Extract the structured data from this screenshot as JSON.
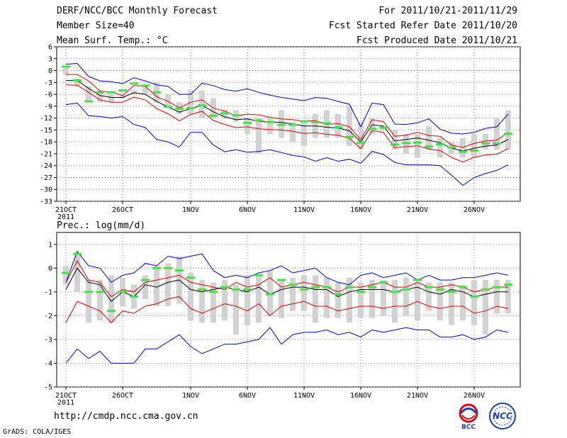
{
  "header": {
    "left_lines": [
      "DERF/NCC/BCC Monthly Forecast",
      "Member Size=40",
      "Mean Surf. Temp.: °C"
    ],
    "right_lines": [
      "For 2011/10/21-2011/11/29",
      "Fcst Started Refer Date 2011/10/20",
      "Fcst Produced Date 2011/10/21"
    ]
  },
  "footer": {
    "url": "http://cmdp.ncc.cma.gov.cn",
    "grads": "GrADS: COLA/IGES",
    "logo_bcc": "BCC",
    "logo_ncc": "NCC"
  },
  "colors": {
    "envelope": "#0000cc",
    "spread": "#dd0000",
    "mean": "#000000",
    "bar": "#d2d2d2",
    "obs": "#44e244",
    "grid": "#777777"
  },
  "chart_data": [
    {
      "type": "line",
      "title": "Mean Surf. Temp.: °C",
      "days": 40,
      "x_tick_labels": [
        {
          "day": 0,
          "label": "21OCT",
          "sub": "2011"
        },
        {
          "day": 5,
          "label": "26OCT"
        },
        {
          "day": 11,
          "label": "1NOV"
        },
        {
          "day": 16,
          "label": "6NOV"
        },
        {
          "day": 21,
          "label": "11NOV"
        },
        {
          "day": 26,
          "label": "16NOV"
        },
        {
          "day": 31,
          "label": "21NOV"
        },
        {
          "day": 36,
          "label": "26NOV"
        }
      ],
      "ylim": [
        -33,
        6
      ],
      "yticks": [
        6,
        3,
        0,
        -3,
        -6,
        -9,
        -12,
        -15,
        -18,
        -21,
        -24,
        -27,
        -30,
        -33
      ],
      "series": [
        {
          "name": "max",
          "values": [
            1.6,
            1.8,
            -1.5,
            -2.6,
            -2.8,
            -3.3,
            -1.8,
            -2.6,
            -3.6,
            -4,
            -6,
            -6,
            -3.2,
            -3.8,
            -4.8,
            -5.2,
            -4.6,
            -5.5,
            -6.2,
            -6.8,
            -7.2,
            -7.6,
            -6.8,
            -7,
            -7.8,
            -8.5,
            -14.2,
            -8.2,
            -8.6,
            -13.5,
            -13.6,
            -13.2,
            -12.2,
            -14.8,
            -15.8,
            -16,
            -15.6,
            -14.6,
            -14.2,
            -11
          ]
        },
        {
          "name": "upper",
          "values": [
            -1,
            -1,
            -2.6,
            -5.2,
            -5.4,
            -6.3,
            -3.8,
            -4,
            -6.6,
            -7.8,
            -9.4,
            -8,
            -7.4,
            -9.5,
            -10.2,
            -11.5,
            -11,
            -11.2,
            -11.8,
            -12.2,
            -12.4,
            -12.8,
            -12.6,
            -13.6,
            -13.4,
            -14.2,
            -17.4,
            -12.4,
            -12.9,
            -16.6,
            -16.3,
            -15.6,
            -16.4,
            -16.6,
            -18.8,
            -19.4,
            -18.4,
            -17.8,
            -17.6,
            -15.6
          ]
        },
        {
          "name": "mean",
          "values": [
            -2.5,
            -2.5,
            -4.5,
            -6.3,
            -6.8,
            -6.8,
            -5.6,
            -6,
            -7.8,
            -9.2,
            -10.5,
            -9.6,
            -8.8,
            -10.4,
            -11.7,
            -12.4,
            -12.2,
            -12.8,
            -13,
            -13.1,
            -13.5,
            -14,
            -14,
            -14.3,
            -14.5,
            -15.2,
            -18,
            -13.7,
            -14,
            -17.8,
            -17.4,
            -17,
            -17.6,
            -18.2,
            -19.6,
            -20.3,
            -19.6,
            -19.1,
            -18.8,
            -17.4
          ]
        },
        {
          "name": "lower",
          "values": [
            -3.6,
            -3.7,
            -5.5,
            -7.4,
            -8,
            -8,
            -6.7,
            -7.4,
            -9.6,
            -10.9,
            -12.7,
            -11.1,
            -10.3,
            -12.6,
            -13.6,
            -14.4,
            -14.2,
            -14.7,
            -14.9,
            -15,
            -15.3,
            -15.9,
            -15.7,
            -16.1,
            -16.3,
            -17.1,
            -19.7,
            -15.2,
            -15.6,
            -19.5,
            -19.2,
            -19,
            -19.8,
            -20.2,
            -21.9,
            -23.1,
            -21.9,
            -21.3,
            -21.1,
            -19.7
          ]
        },
        {
          "name": "min",
          "values": [
            -8.6,
            -8.2,
            -11.4,
            -11.6,
            -12,
            -11.6,
            -13.6,
            -14.4,
            -17.4,
            -18,
            -19.3,
            -15.6,
            -15.6,
            -18.8,
            -20.5,
            -20,
            -20.6,
            -20.4,
            -20,
            -20.7,
            -21.4,
            -21.8,
            -22.9,
            -22,
            -22.9,
            -22.4,
            -23.4,
            -20.4,
            -21.2,
            -23.2,
            -23.8,
            -23.8,
            -23.8,
            -24,
            -26.4,
            -29,
            -27,
            -26,
            -25.2,
            -23.8
          ]
        }
      ],
      "bars": {
        "low": [
          -1,
          -4,
          -8,
          -8,
          -8,
          -7,
          -6,
          -6,
          -8,
          -9,
          -11,
          -11,
          -12,
          -12,
          -12,
          -13,
          -16,
          -21,
          -16,
          -17,
          -18,
          -19,
          -17,
          -17,
          -17,
          -19,
          -20,
          -16,
          -15,
          -20,
          -21,
          -22,
          -20,
          -22,
          -21,
          -22,
          -22,
          -20,
          -20,
          -20
        ],
        "high": [
          1,
          -2,
          -4,
          -5,
          -6,
          -6,
          -5,
          -4,
          -3,
          -6,
          -8,
          -5,
          -5,
          -7,
          -10,
          -10,
          -12,
          -12,
          -12,
          -10,
          -13,
          -13,
          -11,
          -10,
          -11,
          -9,
          -13,
          -12,
          -14,
          -15,
          -16,
          -16,
          -14,
          -17,
          -18,
          -17,
          -16,
          -16,
          -12,
          -10
        ]
      },
      "obs": [
        1,
        -2.5,
        -7.8,
        -5.5,
        -5.5,
        -5,
        -3.3,
        -3.8,
        -5.5,
        -9.2,
        -9.6,
        -9.5,
        -8.8,
        -11.4,
        -10.8,
        -11.3,
        -13.2,
        -12.6,
        -13,
        -13.7,
        -13.7,
        -12.8,
        -13,
        -13.3,
        -14.3,
        -16.8,
        -18.2,
        -14.7,
        -14.4,
        -18.7,
        -18.3,
        -18.2,
        -19.2,
        -18.6,
        -19.4,
        -20.5,
        -20.2,
        -18.4,
        -18.4,
        -16
      ]
    },
    {
      "type": "line",
      "title": "Prec.: log(mm/d)",
      "days": 40,
      "x_tick_labels": [
        {
          "day": 0,
          "label": "21OCT",
          "sub": "2011"
        },
        {
          "day": 5,
          "label": "26OCT"
        },
        {
          "day": 11,
          "label": "1NOV"
        },
        {
          "day": 16,
          "label": "6NOV"
        },
        {
          "day": 21,
          "label": "11NOV"
        },
        {
          "day": 26,
          "label": "16NOV"
        },
        {
          "day": 31,
          "label": "21NOV"
        },
        {
          "day": 36,
          "label": "26NOV"
        }
      ],
      "ylim": [
        -5,
        1.5
      ],
      "yticks": [
        1,
        0,
        -1,
        -2,
        -3,
        -4,
        -5
      ],
      "series": [
        {
          "name": "max",
          "values": [
            -0.6,
            0.7,
            0.1,
            0,
            -0.6,
            -0.3,
            -0.2,
            0.2,
            0.1,
            0.5,
            0.4,
            0.5,
            0.6,
            -0.1,
            -0.4,
            -0.3,
            -0.4,
            -0.2,
            -0.1,
            0.1,
            -0.2,
            -0.1,
            0,
            -0.4,
            -0.6,
            -0.7,
            -0.3,
            -0.2,
            -0.4,
            -0.3,
            -0.2,
            -0.5,
            -0.3,
            -0.5,
            -0.5,
            -0.4,
            -0.4,
            -0.3,
            -0.2,
            -0.3
          ]
        },
        {
          "name": "upper",
          "values": [
            -0.6,
            0.3,
            -0.5,
            -0.6,
            -1.2,
            -0.9,
            -1,
            -0.6,
            -0.5,
            -0.4,
            -0.3,
            -0.6,
            -0.7,
            -0.8,
            -0.9,
            -0.6,
            -0.8,
            -0.7,
            -0.4,
            -0.8,
            -0.7,
            -0.6,
            -0.7,
            -0.8,
            -1,
            -0.8,
            -0.8,
            -0.7,
            -0.6,
            -0.8,
            -0.8,
            -0.6,
            -0.8,
            -0.8,
            -0.7,
            -0.8,
            -1,
            -0.9,
            -0.8,
            -0.8
          ]
        },
        {
          "name": "mean",
          "values": [
            -0.9,
            0,
            -0.6,
            -0.7,
            -1.4,
            -1,
            -1.2,
            -0.7,
            -0.8,
            -0.6,
            -0.5,
            -0.9,
            -1,
            -0.9,
            -0.8,
            -0.9,
            -1,
            -0.8,
            -1.1,
            -0.9,
            -0.8,
            -0.8,
            -0.9,
            -0.9,
            -1.2,
            -1,
            -0.9,
            -0.9,
            -0.9,
            -1,
            -0.9,
            -0.8,
            -1,
            -1.1,
            -0.9,
            -1,
            -1.2,
            -1.1,
            -1,
            -1
          ]
        },
        {
          "name": "lower",
          "values": [
            -2.3,
            -1.4,
            -1.6,
            -1.8,
            -2.3,
            -1.8,
            -1.9,
            -1.6,
            -1.5,
            -1.3,
            -1.2,
            -1.7,
            -1.9,
            -1.7,
            -1.5,
            -1.6,
            -1.8,
            -1.5,
            -2,
            -1.6,
            -1.5,
            -1.4,
            -1.6,
            -1.6,
            -1.8,
            -1.7,
            -1.6,
            -1.6,
            -1.7,
            -1.6,
            -1.6,
            -1.4,
            -1.6,
            -1.7,
            -1.6,
            -1.6,
            -1.9,
            -1.8,
            -1.6,
            -1.7
          ]
        },
        {
          "name": "min",
          "values": [
            -4,
            -3.4,
            -3.8,
            -3.5,
            -4,
            -4,
            -4,
            -3.4,
            -3.4,
            -3.1,
            -2.8,
            -3.3,
            -3.6,
            -3.4,
            -3.2,
            -3.2,
            -3.1,
            -3,
            -2.5,
            -3.2,
            -2.8,
            -2.7,
            -2.7,
            -2.6,
            -2.8,
            -2.7,
            -2.9,
            -2.6,
            -2.7,
            -2.6,
            -2.5,
            -2.6,
            -2.6,
            -2.9,
            -2.9,
            -2.8,
            -3,
            -2.9,
            -2.6,
            -2.7
          ]
        }
      ],
      "bars": {
        "low": [
          -0.7,
          -1,
          -2.3,
          -2.2,
          -2.3,
          -1.6,
          -1.7,
          -1.3,
          -1.6,
          -1.6,
          -1.5,
          -2.2,
          -2.3,
          -2.3,
          -2.2,
          -2.8,
          -2.4,
          -2.3,
          -2,
          -2.1,
          -1.8,
          -1.8,
          -2.3,
          -2.1,
          -2.1,
          -2.3,
          -2.1,
          -2.1,
          -2,
          -2.3,
          -2,
          -2.2,
          -1.8,
          -2.2,
          -2.4,
          -2.2,
          -2.4,
          -2.8,
          -1.9,
          -1.9
        ],
        "high": [
          0.1,
          0.6,
          -0.5,
          -0.5,
          -0.3,
          -0.4,
          -0.7,
          -0.3,
          0.1,
          0.2,
          0.5,
          -0.2,
          -0.5,
          -0.6,
          -0.5,
          -0.7,
          -0.3,
          -0.3,
          -0.1,
          -0.5,
          -0.4,
          -0.3,
          -0.3,
          -0.4,
          -0.6,
          -0.4,
          -0.6,
          -0.5,
          -0.5,
          -0.5,
          -0.4,
          -0.6,
          -0.6,
          -0.6,
          -0.6,
          -0.7,
          -0.5,
          -0.5,
          -0.5,
          -0.5
        ]
      },
      "obs": [
        -0.2,
        0.6,
        -1,
        -1,
        -1.8,
        -1,
        -1.2,
        -0.5,
        0,
        0,
        -0.1,
        -0.4,
        -0.9,
        -1,
        -0.8,
        -0.9,
        -0.9,
        -0.3,
        -1.1,
        -0.5,
        -0.7,
        -0.9,
        -0.8,
        -0.8,
        -1.1,
        -0.8,
        -1,
        -0.8,
        -0.6,
        -1,
        -0.9,
        -0.5,
        -0.8,
        -0.9,
        -1,
        -0.8,
        -1.2,
        -0.9,
        -0.8,
        -0.7
      ]
    }
  ]
}
